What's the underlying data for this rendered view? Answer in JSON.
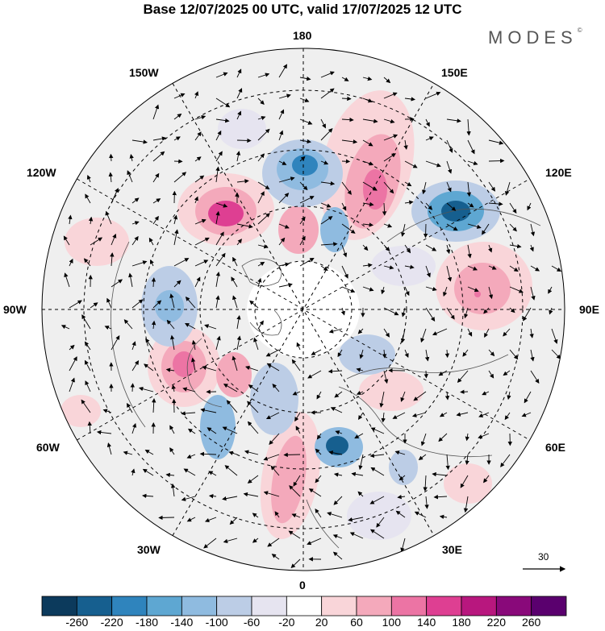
{
  "header": {
    "title": "Base 12/07/2025 00 UTC, valid 17/07/2025 12 UTC",
    "brand": "MODES",
    "brand_mark": "©"
  },
  "longitude_labels": {
    "lon_180": "180",
    "lon_150e": "150E",
    "lon_120e": "120E",
    "lon_90e": "90E",
    "lon_60e": "60E",
    "lon_30e": "30E",
    "lon_0": "0",
    "lon_30w": "30W",
    "lon_60w": "60W",
    "lon_90w": "90W",
    "lon_120w": "120W",
    "lon_150w": "150W"
  },
  "reference_vector": {
    "label": "30"
  },
  "colorbar": {
    "colors": [
      "#0c3a5c",
      "#165f8f",
      "#2f84bd",
      "#5ea7d2",
      "#8fbbe0",
      "#bccde6",
      "#e6e4f0",
      "#ffffff",
      "#f9d5d9",
      "#f4a9bb",
      "#ec74a4",
      "#de3f92",
      "#b8177e",
      "#89097a",
      "#5a006e"
    ],
    "labels": [
      "-260",
      "-220",
      "-180",
      "-140",
      "-100",
      "-60",
      "-20",
      "20",
      "60",
      "100",
      "140",
      "180",
      "220",
      "260"
    ]
  },
  "map": {
    "projection": "north polar stereographic",
    "field": "anomaly shading with wind vectors",
    "background_color": "#efefef",
    "positive_color": "#ec74a4",
    "negative_color": "#2f84bd"
  }
}
